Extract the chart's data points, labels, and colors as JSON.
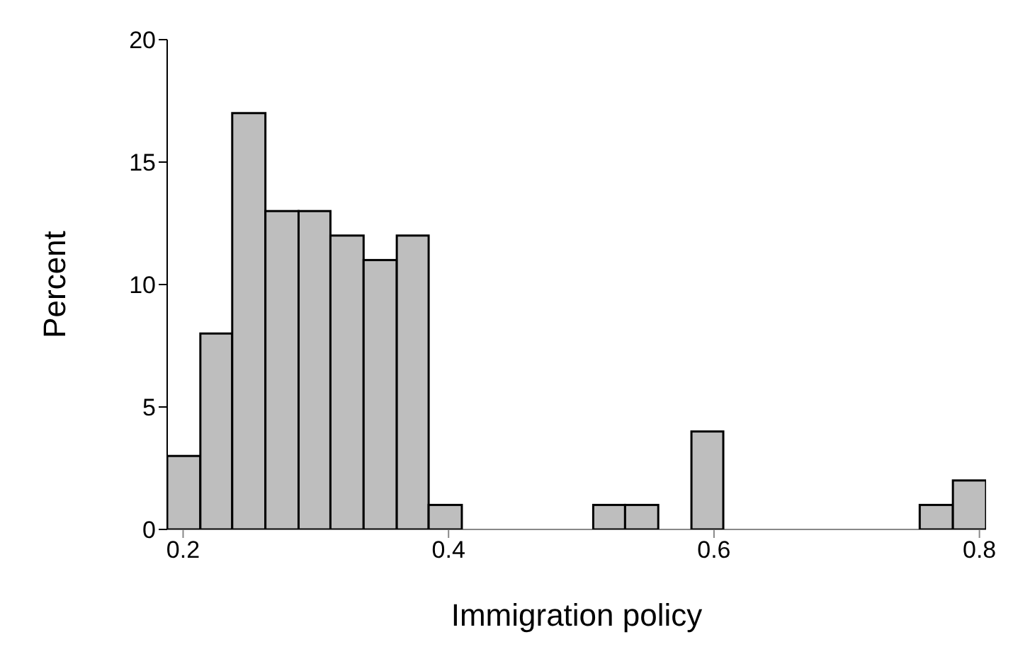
{
  "chart_data": {
    "type": "histogram",
    "xlabel": "Immigration policy",
    "ylabel": "Percent",
    "bins": [
      0.188,
      0.213,
      0.237,
      0.262,
      0.287,
      0.311,
      0.336,
      0.361,
      0.385,
      0.41,
      0.509,
      0.533,
      0.558,
      0.583,
      0.607,
      0.755,
      0.78,
      0.805
    ],
    "values": [
      3,
      8,
      17,
      13,
      13,
      12,
      11,
      12,
      1,
      0,
      1,
      1,
      0,
      4,
      0,
      1,
      2
    ],
    "color": "#bebebe",
    "xlim": [
      0.188,
      0.805
    ],
    "xticks": [
      0.2,
      0.4,
      0.6,
      0.8
    ],
    "ylim": [
      0,
      20
    ],
    "yticks": [
      0,
      5,
      10,
      15,
      20
    ],
    "grid": false
  }
}
